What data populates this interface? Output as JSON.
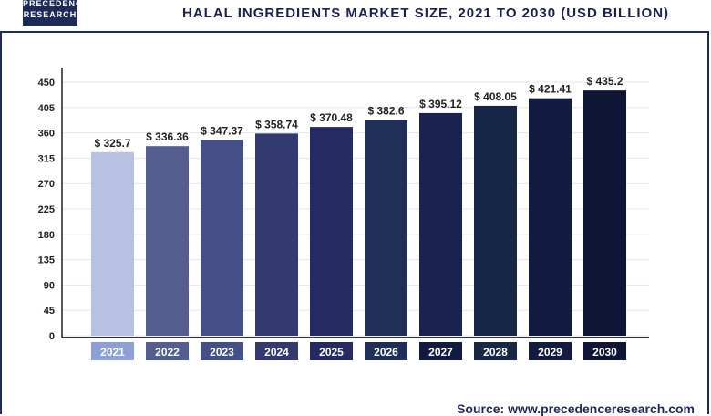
{
  "logo": "PRECEDENCE RESEARCH",
  "source": "Source: www.precedenceresearch.com",
  "chart_data": {
    "type": "bar",
    "title": "HALAL INGREDIENTS MARKET SIZE, 2021 TO 2030 (USD BILLION)",
    "categories": [
      "2021",
      "2022",
      "2023",
      "2024",
      "2025",
      "2026",
      "2027",
      "2028",
      "2029",
      "2030"
    ],
    "values": [
      325.7,
      336.36,
      347.37,
      358.74,
      370.48,
      382.6,
      395.12,
      408.05,
      421.41,
      435.2
    ],
    "data_labels": [
      "$ 325.7",
      "$ 336.36",
      "$ 347.37",
      "$ 358.74",
      "$ 370.48",
      "$ 382.6",
      "$ 395.12",
      "$ 408.05",
      "$ 421.41",
      "$ 435.2"
    ],
    "ylim": [
      0,
      450
    ],
    "yticks": [
      0,
      45,
      90,
      135,
      180,
      225,
      270,
      315,
      360,
      405,
      450
    ],
    "grid": true,
    "bar_colors": [
      "#b9c1e2",
      "#545e8e",
      "#444e87",
      "#323a70",
      "#252a62",
      "#1f2f58",
      "#1a2350",
      "#172748",
      "#121c40",
      "#0e1535"
    ],
    "label_colors": [
      "#8d9fd4",
      "#545e8e",
      "#444e87",
      "#323a70",
      "#252a62",
      "#1f2f58",
      "#111a40",
      "#172748",
      "#121c40",
      "#0e1535"
    ]
  }
}
